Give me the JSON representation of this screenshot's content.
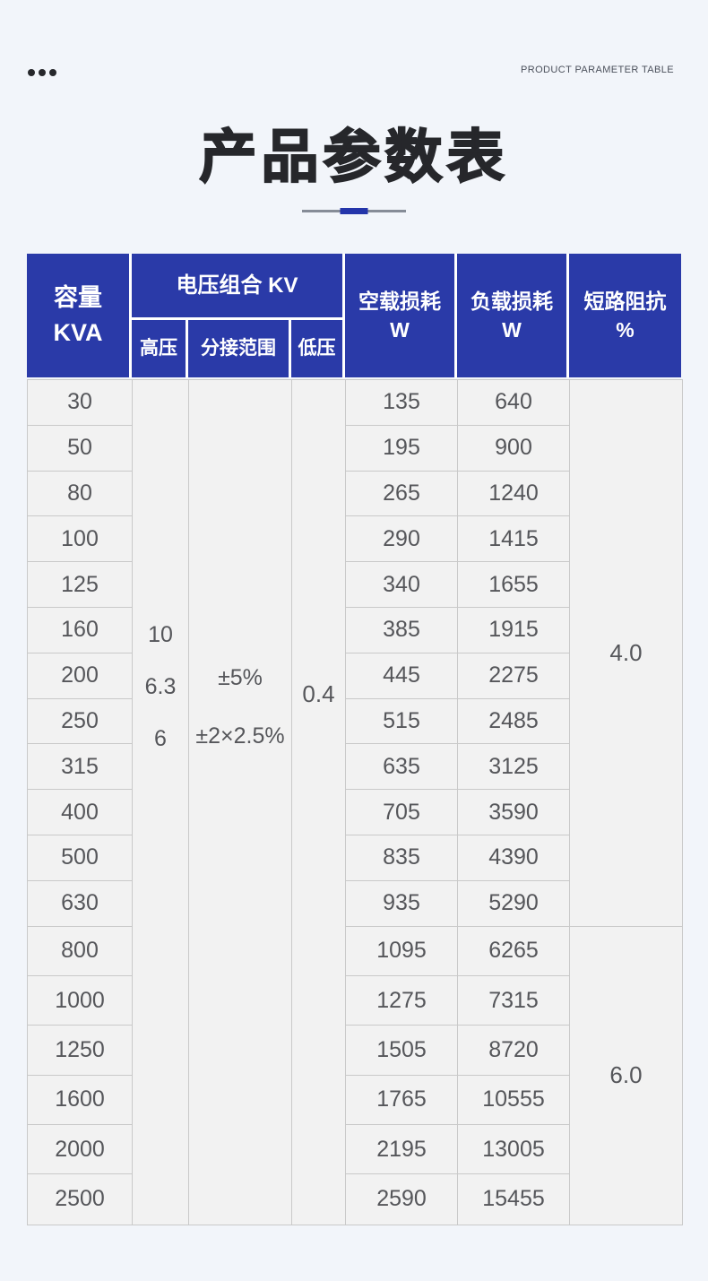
{
  "header": {
    "eyebrow": "PRODUCT PARAMETER TABLE",
    "title": "产品参数表"
  },
  "colors": {
    "page_bg": "#f2f5fa",
    "header_blue": "#2a3aa8",
    "accent_blue": "#2435aa",
    "grid_line": "#c9c9c9",
    "cell_bg": "#f2f2f2",
    "body_text": "#55565a"
  },
  "table": {
    "col_headers": {
      "capacity_line1": "容量",
      "capacity_line2": "KVA",
      "voltage_group": "电压组合 KV",
      "hv": "高压",
      "tap_range": "分接范围",
      "lv": "低压",
      "no_load_line1": "空载损耗",
      "no_load_line2": "W",
      "load_line1": "负载损耗",
      "load_line2": "W",
      "impedance_line1": "短路阻抗",
      "impedance_line2": "%"
    },
    "shared_values": {
      "hv_options": [
        "10",
        "6.3",
        "6"
      ],
      "tap_options": [
        "±5%",
        "±2×2.5%"
      ],
      "lv_value": "0.4"
    },
    "rows": [
      {
        "capacity": "30",
        "no_load_w": "135",
        "load_w": "640"
      },
      {
        "capacity": "50",
        "no_load_w": "195",
        "load_w": "900"
      },
      {
        "capacity": "80",
        "no_load_w": "265",
        "load_w": "1240"
      },
      {
        "capacity": "100",
        "no_load_w": "290",
        "load_w": "1415"
      },
      {
        "capacity": "125",
        "no_load_w": "340",
        "load_w": "1655"
      },
      {
        "capacity": "160",
        "no_load_w": "385",
        "load_w": "1915"
      },
      {
        "capacity": "200",
        "no_load_w": "445",
        "load_w": "2275"
      },
      {
        "capacity": "250",
        "no_load_w": "515",
        "load_w": "2485"
      },
      {
        "capacity": "315",
        "no_load_w": "635",
        "load_w": "3125"
      },
      {
        "capacity": "400",
        "no_load_w": "705",
        "load_w": "3590"
      },
      {
        "capacity": "500",
        "no_load_w": "835",
        "load_w": "4390"
      },
      {
        "capacity": "630",
        "no_load_w": "935",
        "load_w": "5290"
      },
      {
        "capacity": "800",
        "no_load_w": "1095",
        "load_w": "6265"
      },
      {
        "capacity": "1000",
        "no_load_w": "1275",
        "load_w": "7315"
      },
      {
        "capacity": "1250",
        "no_load_w": "1505",
        "load_w": "8720"
      },
      {
        "capacity": "1600",
        "no_load_w": "1765",
        "load_w": "10555"
      },
      {
        "capacity": "2000",
        "no_load_w": "2195",
        "load_w": "13005"
      },
      {
        "capacity": "2500",
        "no_load_w": "2590",
        "load_w": "15455"
      }
    ],
    "impedance_groups": [
      {
        "value": "4.0",
        "row_span": 12
      },
      {
        "value": "6.0",
        "row_span": 6
      }
    ]
  }
}
